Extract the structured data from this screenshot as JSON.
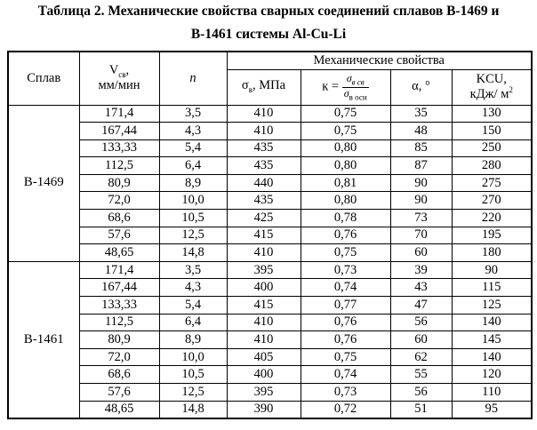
{
  "title": {
    "line1": "Таблица 2. Механические свойства сварных соединений сплавов В-1469 и",
    "line2": "В-1461 системы Al-Cu-Li"
  },
  "table": {
    "header": {
      "alloy": "Сплав",
      "speed": {
        "main": "V",
        "sub": "св",
        "suffix": ",",
        "unit": "мм/мин"
      },
      "n": "n",
      "group": "Механические свойства",
      "sigma": {
        "main": "σ",
        "sub": "в",
        "suffix": ", МПа"
      },
      "k": {
        "main": "к =",
        "num": {
          "main": "σ",
          "sub": "в св"
        },
        "den": {
          "main": "σ",
          "sub": "в осн"
        }
      },
      "alpha": "α, °",
      "kcu": {
        "line1": "KCU,",
        "unit": "кДж/ м",
        "sup": "2"
      }
    },
    "groups": [
      {
        "alloy": "В-1469",
        "rows": [
          [
            "171,4",
            "3,5",
            "410",
            "0,75",
            "35",
            "130"
          ],
          [
            "167,44",
            "4,3",
            "410",
            "0,75",
            "48",
            "150"
          ],
          [
            "133,33",
            "5,4",
            "435",
            "0,80",
            "85",
            "250"
          ],
          [
            "112,5",
            "6,4",
            "435",
            "0,80",
            "87",
            "280"
          ],
          [
            "80,9",
            "8,9",
            "440",
            "0,81",
            "90",
            "275"
          ],
          [
            "72,0",
            "10,0",
            "435",
            "0,80",
            "90",
            "270"
          ],
          [
            "68,6",
            "10,5",
            "425",
            "0,78",
            "73",
            "220"
          ],
          [
            "57,6",
            "12,5",
            "415",
            "0,76",
            "70",
            "195"
          ],
          [
            "48,65",
            "14,8",
            "410",
            "0,75",
            "60",
            "180"
          ]
        ]
      },
      {
        "alloy": "В-1461",
        "rows": [
          [
            "171,4",
            "3,5",
            "395",
            "0,73",
            "39",
            "90"
          ],
          [
            "167,44",
            "4,3",
            "400",
            "0,74",
            "43",
            "115"
          ],
          [
            "133,33",
            "5,4",
            "415",
            "0,77",
            "47",
            "125"
          ],
          [
            "112,5",
            "6,4",
            "410",
            "0,76",
            "56",
            "140"
          ],
          [
            "80,9",
            "8,9",
            "410",
            "0,76",
            "60",
            "145"
          ],
          [
            "72,0",
            "10,0",
            "405",
            "0,75",
            "62",
            "140"
          ],
          [
            "68,6",
            "10,5",
            "400",
            "0,74",
            "55",
            "120"
          ],
          [
            "57,6",
            "12,5",
            "395",
            "0,73",
            "56",
            "110"
          ],
          [
            "48,65",
            "14,8",
            "390",
            "0,72",
            "51",
            "95"
          ]
        ]
      }
    ]
  }
}
